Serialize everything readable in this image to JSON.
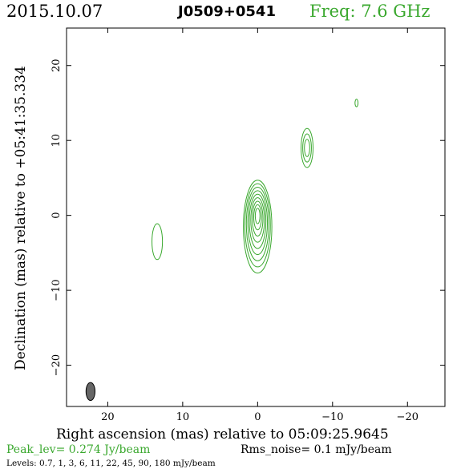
{
  "header": {
    "date": "2015.10.07",
    "source": "J0509+0541",
    "freq": "Freq: 7.6 GHz"
  },
  "axes": {
    "xlabel": "Right ascension (mas) relative to 05:09:25.9645",
    "ylabel": "Declination (mas) relative to +05:41:35.334",
    "x_ticks": [
      "20",
      "10",
      "0",
      "−10",
      "−20"
    ],
    "y_ticks": [
      "20",
      "10",
      "0",
      "−10",
      "−20"
    ]
  },
  "footer": {
    "peak": "Peak_lev=  0.274 Jy/beam",
    "rms": "Rms_noise=  0.1 mJy/beam",
    "levels": "Levels: 0.7,   1,   3,   6,  11,  22,  45,  90, 180 mJy/beam"
  },
  "chart_data": {
    "type": "contour",
    "x_range": [
      25.5,
      -25
    ],
    "y_range": [
      -25.5,
      25
    ],
    "x_tick_values": [
      20,
      10,
      0,
      -10,
      -20
    ],
    "y_tick_values": [
      20,
      10,
      0,
      -10,
      -20
    ],
    "contour_color": "#3aa82e",
    "levels_mjy": [
      0.7,
      1,
      3,
      6,
      11,
      22,
      45,
      90,
      180
    ],
    "components": [
      {
        "name": "core",
        "x": 0,
        "y": -1.5,
        "rx": 1.9,
        "ry": 6.2,
        "peak_level_index": 8
      },
      {
        "name": "jet-ne",
        "x": -6.6,
        "y": 9,
        "rx": 0.8,
        "ry": 2.6,
        "peak_level_index": 2
      },
      {
        "name": "jet-far",
        "x": -13.2,
        "y": 15,
        "rx": 0.2,
        "ry": 0.5,
        "peak_level_index": 0
      },
      {
        "name": "counter-blob",
        "x": 13.4,
        "y": -3.5,
        "rx": 0.7,
        "ry": 2.4,
        "peak_level_index": 0
      }
    ],
    "beam": {
      "x": 22.3,
      "y": -23.5,
      "bmaj": 2.4,
      "bmin": 1.2,
      "color": "#666666"
    }
  }
}
